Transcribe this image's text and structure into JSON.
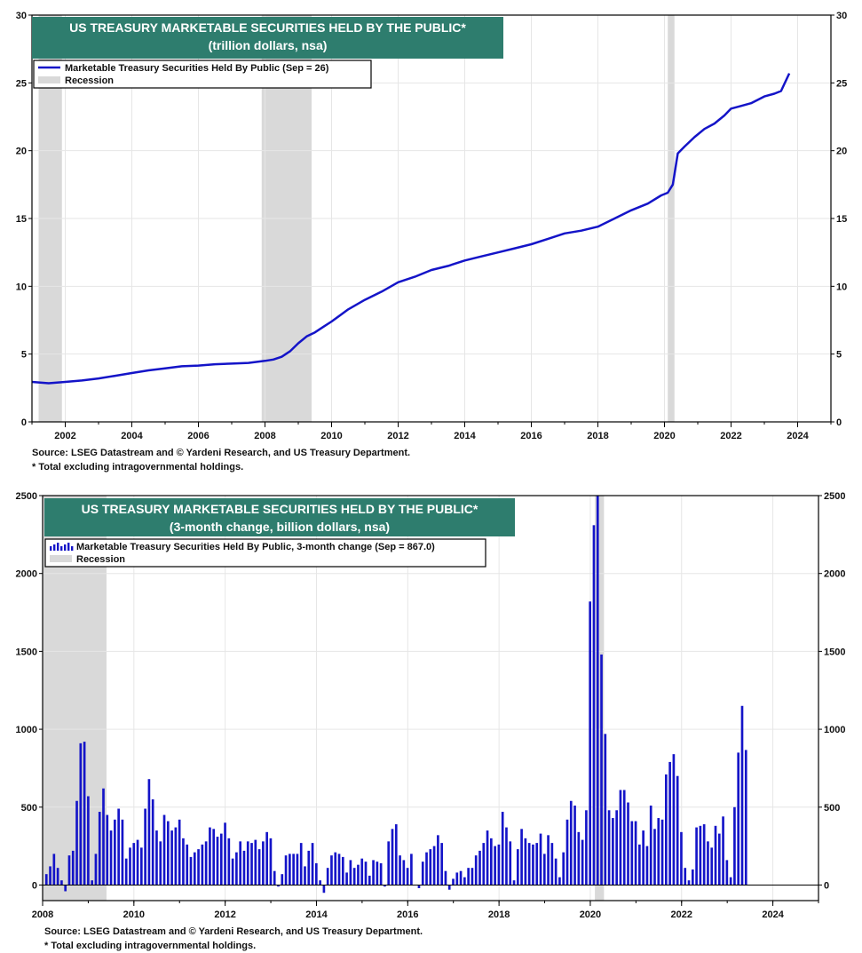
{
  "charts": [
    {
      "title_line1": "US TREASURY MARKETABLE SECURITIES HELD BY THE PUBLIC*",
      "title_line2": "(trillion dollars, nsa)",
      "legend_series": "Marketable Treasury Securities Held By Public (Sep = 26)",
      "legend_recession": "Recession",
      "source_line1": "Source: LSEG Datastream and © Yardeni Research, and US Treasury Department.",
      "source_line2": "* Total excluding intragovernmental holdings."
    },
    {
      "title_line1": "US TREASURY MARKETABLE SECURITIES HELD BY THE PUBLIC*",
      "title_line2": "(3-month change, billion dollars, nsa)",
      "legend_series": "Marketable Treasury Securities Held By Public, 3-month change (Sep = 867.0)",
      "legend_recession": "Recession",
      "source_line1": "Source: LSEG Datastream and © Yardeni Research, and US Treasury Department.",
      "source_line2": "* Total excluding intragovernmental holdings."
    }
  ],
  "colors": {
    "series": "#1414c8",
    "recession": "#d9d9d9",
    "title_bg": "#2e7d6e",
    "axis": "#000000",
    "grid": "#e6e6e6"
  },
  "chart_data": [
    {
      "type": "line",
      "xlim": [
        2001.0,
        2025.0
      ],
      "ylim": [
        0,
        30
      ],
      "x_ticks": [
        "2002",
        "2004",
        "2006",
        "2008",
        "2010",
        "2012",
        "2014",
        "2016",
        "2018",
        "2020",
        "2022",
        "2024"
      ],
      "y_ticks": [
        "0",
        "5",
        "10",
        "15",
        "20",
        "25",
        "30"
      ],
      "recessions": [
        [
          2001.2,
          2001.9
        ],
        [
          2007.9,
          2009.4
        ],
        [
          2020.1,
          2020.3
        ]
      ],
      "series": [
        {
          "x": [
            2001.0,
            2001.25,
            2001.5,
            2001.75,
            2002.0,
            2002.5,
            2003.0,
            2003.5,
            2004.0,
            2004.5,
            2005.0,
            2005.5,
            2006.0,
            2006.5,
            2007.0,
            2007.5,
            2008.0,
            2008.25,
            2008.5,
            2008.75,
            2009.0,
            2009.25,
            2009.5,
            2009.75,
            2010.0,
            2010.5,
            2011.0,
            2011.5,
            2012.0,
            2012.5,
            2013.0,
            2013.5,
            2014.0,
            2014.5,
            2015.0,
            2015.5,
            2016.0,
            2016.5,
            2017.0,
            2017.5,
            2018.0,
            2018.5,
            2019.0,
            2019.5,
            2019.9,
            2020.1,
            2020.25,
            2020.4,
            2020.6,
            2020.9,
            2021.2,
            2021.5,
            2021.8,
            2022.0,
            2022.3,
            2022.6,
            2023.0,
            2023.3,
            2023.5,
            2023.75
          ],
          "values": [
            2.95,
            2.9,
            2.85,
            2.9,
            2.95,
            3.05,
            3.2,
            3.4,
            3.6,
            3.8,
            3.95,
            4.1,
            4.15,
            4.25,
            4.3,
            4.35,
            4.5,
            4.6,
            4.8,
            5.2,
            5.8,
            6.3,
            6.6,
            7.0,
            7.4,
            8.3,
            9.0,
            9.6,
            10.3,
            10.7,
            11.2,
            11.5,
            11.9,
            12.2,
            12.5,
            12.8,
            13.1,
            13.5,
            13.9,
            14.1,
            14.4,
            15.0,
            15.6,
            16.1,
            16.7,
            16.9,
            17.5,
            19.8,
            20.3,
            21.0,
            21.6,
            22.0,
            22.6,
            23.1,
            23.3,
            23.5,
            24.0,
            24.2,
            24.4,
            25.7
          ]
        }
      ]
    },
    {
      "type": "bar",
      "xlim": [
        2008.0,
        2025.0
      ],
      "ylim": [
        -100,
        2500
      ],
      "x_ticks": [
        "2008",
        "2010",
        "2012",
        "2014",
        "2016",
        "2018",
        "2020",
        "2022",
        "2024"
      ],
      "y_ticks": [
        "0",
        "500",
        "1000",
        "1500",
        "2000",
        "2500"
      ],
      "recessions": [
        [
          2008.0,
          2009.4
        ],
        [
          2020.1,
          2020.3
        ]
      ],
      "series": [
        {
          "x_start": 2008.083,
          "x_step": 0.0833,
          "values": [
            70,
            120,
            200,
            110,
            30,
            -40,
            190,
            220,
            540,
            910,
            920,
            570,
            30,
            200,
            470,
            620,
            450,
            350,
            420,
            490,
            420,
            170,
            240,
            270,
            290,
            240,
            490,
            680,
            550,
            350,
            280,
            450,
            410,
            350,
            370,
            420,
            300,
            260,
            180,
            210,
            230,
            260,
            280,
            370,
            360,
            310,
            330,
            400,
            300,
            170,
            210,
            280,
            220,
            280,
            270,
            290,
            230,
            280,
            340,
            300,
            90,
            -10,
            70,
            190,
            200,
            200,
            200,
            270,
            120,
            220,
            270,
            140,
            30,
            -50,
            110,
            190,
            210,
            200,
            180,
            80,
            160,
            110,
            130,
            170,
            150,
            60,
            160,
            150,
            140,
            -10,
            280,
            360,
            390,
            190,
            160,
            110,
            200,
            0,
            -20,
            150,
            210,
            230,
            250,
            320,
            270,
            90,
            -30,
            40,
            80,
            90,
            50,
            110,
            110,
            190,
            220,
            270,
            350,
            300,
            250,
            260,
            470,
            370,
            280,
            30,
            230,
            360,
            300,
            270,
            260,
            270,
            330,
            200,
            320,
            270,
            170,
            50,
            210,
            420,
            540,
            510,
            340,
            290,
            480,
            1820,
            2310,
            2500,
            1480,
            970,
            480,
            430,
            480,
            610,
            610,
            530,
            410,
            410,
            260,
            350,
            250,
            510,
            360,
            430,
            420,
            710,
            790,
            840,
            700,
            340,
            110,
            30,
            100,
            370,
            380,
            390,
            280,
            240,
            380,
            330,
            440,
            160,
            50,
            500,
            850,
            1150,
            867
          ]
        }
      ]
    }
  ]
}
